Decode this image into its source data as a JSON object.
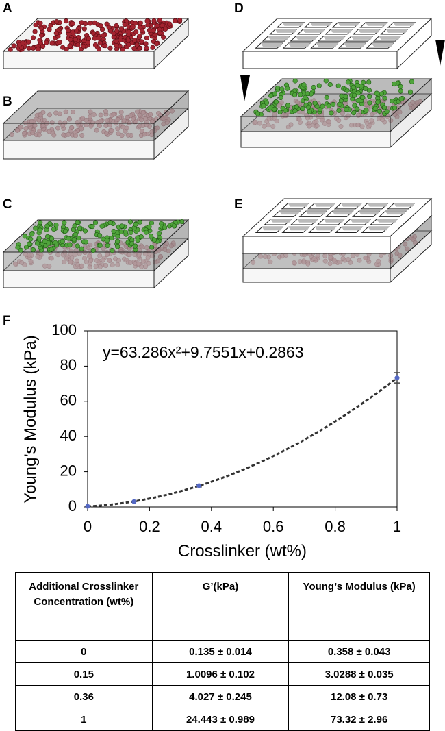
{
  "panels": {
    "labels": [
      "A",
      "B",
      "C",
      "D",
      "E"
    ]
  },
  "chart_data": {
    "type": "scatter",
    "panel_label": "F",
    "x": [
      0,
      0.15,
      0.36,
      1
    ],
    "values": [
      0.358,
      3.0288,
      12.08,
      73.32
    ],
    "errors": [
      0.043,
      0.035,
      0.73,
      2.96
    ],
    "color": "#5468c4",
    "error_color": "#444444",
    "xlim": [
      0,
      1
    ],
    "ylim": [
      0,
      100
    ],
    "xticks": [
      0,
      0.2,
      0.4,
      0.6,
      0.8,
      1
    ],
    "yticks": [
      0,
      20,
      40,
      60,
      80,
      100
    ],
    "x_label": "Crosslinker (wt%)",
    "y_label": "Young’s Modulus (kPa)",
    "annotation": "y=63.286x²+9.7551x+0.2863",
    "fit": {
      "coefficients": [
        63.286,
        9.7551,
        0.2863
      ],
      "color": "#333333"
    }
  },
  "table": {
    "header": [
      "Additional Crosslinker Concentration (wt%)",
      "G’(kPa)",
      "Young’s Modulus (kPa)"
    ],
    "rows": [
      [
        "0",
        "0.135 ± 0.014",
        "0.358 ± 0.043"
      ],
      [
        "0.15",
        "1.0096 ± 0.102",
        "3.0288 ± 0.035"
      ],
      [
        "0.36",
        "4.027 ± 0.245",
        "12.08 ± 0.73"
      ],
      [
        "1",
        "24.443 ± 0.989",
        "73.32 ± 2.96"
      ]
    ]
  }
}
